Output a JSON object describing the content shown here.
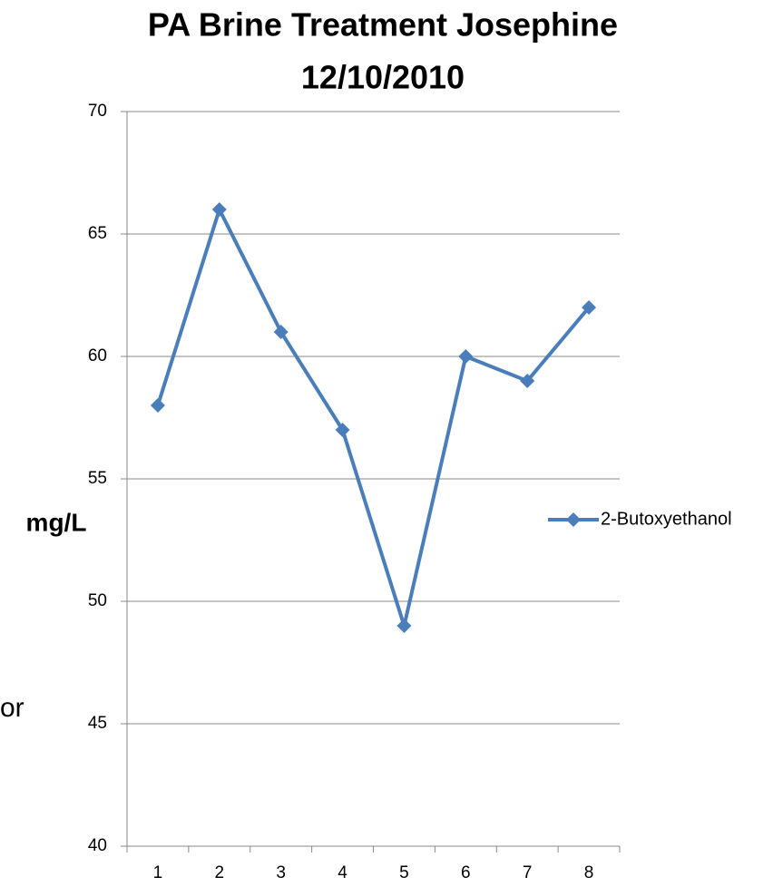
{
  "chart_data": {
    "type": "line",
    "title": [
      "PA Brine Treatment Josephine",
      "12/10/2010"
    ],
    "y_label": "mg/L",
    "annotations": [
      "or"
    ],
    "categories": [
      "1",
      "2",
      "3",
      "4",
      "5",
      "6",
      "7",
      "8"
    ],
    "series": [
      {
        "name": "2-Butoxyethanol",
        "color": "#4a7ebb",
        "values": [
          58,
          66,
          61,
          57,
          49,
          60,
          59,
          62
        ]
      }
    ],
    "ylim": [
      40,
      70
    ],
    "yticks": [
      40,
      45,
      50,
      55,
      60,
      65,
      70
    ],
    "grid": true,
    "legend": "right"
  }
}
